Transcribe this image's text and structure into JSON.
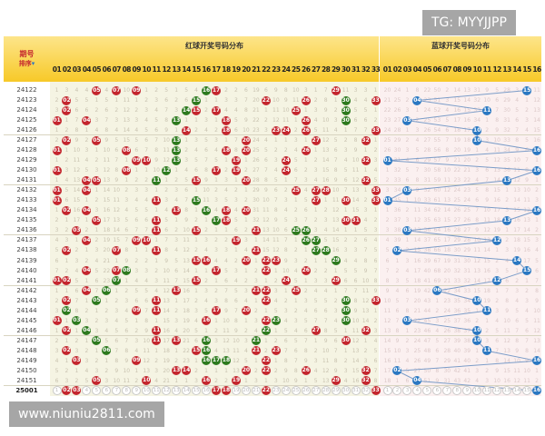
{
  "chart_data": {
    "type": "table",
    "header": {
      "issue_label": "期号",
      "sort_label": "排序",
      "sort_icon": "caret-down-icon",
      "red_title": "红球开奖号码分布",
      "blue_title": "蓝球开奖号码分布"
    },
    "red_columns": [
      "01",
      "02",
      "03",
      "04",
      "05",
      "06",
      "07",
      "08",
      "09",
      "10",
      "11",
      "12",
      "13",
      "14",
      "15",
      "16",
      "17",
      "18",
      "19",
      "20",
      "21",
      "22",
      "23",
      "24",
      "25",
      "26",
      "27",
      "28",
      "29",
      "30",
      "31",
      "32",
      "33"
    ],
    "blue_columns": [
      "01",
      "02",
      "03",
      "04",
      "05",
      "06",
      "07",
      "08",
      "09",
      "10",
      "11",
      "12",
      "13",
      "14",
      "15",
      "16"
    ],
    "first_row_red_omission": [
      1,
      3,
      4,
      4,
      0,
      4,
      0,
      10,
      0,
      1,
      2,
      5,
      1,
      5,
      4,
      0,
      0,
      2,
      2,
      6,
      19,
      6,
      9,
      8,
      10,
      3,
      1,
      7,
      0,
      11,
      3,
      3,
      1
    ],
    "first_row_blue_omission": [
      20,
      24,
      1,
      8,
      22,
      50,
      2,
      14,
      13,
      31,
      9,
      5,
      28,
      3,
      0,
      11
    ],
    "rows": [
      {
        "issue": "24122",
        "red": [
          5,
          7,
          9,
          16,
          17,
          29
        ],
        "green": [
          16
        ],
        "blue": 15
      },
      {
        "issue": "24123",
        "red": [
          2,
          15,
          22,
          26,
          30,
          33
        ],
        "green": [
          15,
          30
        ],
        "blue": 4
      },
      {
        "issue": "24124",
        "red": [
          2,
          14,
          15,
          17,
          25,
          30
        ],
        "green": [
          14,
          30
        ],
        "blue": 11
      },
      {
        "issue": "24125",
        "red": [
          1,
          4,
          13,
          18,
          26,
          30
        ],
        "green": [
          13,
          30
        ],
        "blue": 3
      },
      {
        "issue": "24126",
        "red": [
          14,
          18,
          23,
          24,
          26,
          33
        ],
        "green": [],
        "blue": 10
      },
      {
        "issue": "24127",
        "red": [
          2,
          5,
          13,
          20,
          27,
          32
        ],
        "green": [
          13
        ],
        "blue": 10
      },
      {
        "issue": "24128",
        "red": [
          1,
          8,
          13,
          18,
          20,
          26
        ],
        "green": [
          13
        ],
        "blue": 16
      },
      {
        "issue": "24129",
        "red": [
          9,
          10,
          13,
          19,
          24,
          32
        ],
        "green": [
          13
        ],
        "blue": 1
      },
      {
        "issue": "24130",
        "red": [
          1,
          8,
          12,
          17,
          19,
          24
        ],
        "green": [
          12
        ],
        "blue": 16
      },
      {
        "issue": "24131",
        "red": [
          4,
          5,
          11,
          15,
          20,
          32
        ],
        "green": [
          11
        ],
        "blue": 13
      },
      {
        "issue": "24132",
        "red": [
          1,
          4,
          25,
          27,
          28,
          33
        ],
        "green": [],
        "blue": 3
      },
      {
        "issue": "24133",
        "red": [
          1,
          11,
          15,
          27,
          30,
          33
        ],
        "green": [
          15
        ],
        "blue": 1
      },
      {
        "issue": "24134",
        "red": [
          2,
          4,
          13,
          16,
          18,
          20
        ],
        "green": [
          16
        ],
        "blue": 16
      },
      {
        "issue": "24135",
        "red": [
          5,
          11,
          17,
          18,
          30,
          31
        ],
        "green": [
          17
        ],
        "blue": 13
      },
      {
        "issue": "24136",
        "red": [
          3,
          11,
          15,
          21,
          25,
          26
        ],
        "green": [
          25,
          26
        ],
        "blue": 3
      },
      {
        "issue": "24137",
        "red": [
          4,
          9,
          10,
          19,
          26,
          27
        ],
        "green": [
          26,
          27
        ],
        "blue": 12
      },
      {
        "issue": "24138",
        "red": [
          2,
          7,
          11,
          21,
          27,
          28
        ],
        "green": [
          27,
          28
        ],
        "blue": 2
      },
      {
        "issue": "24139",
        "red": [
          15,
          16,
          20,
          22,
          23,
          29
        ],
        "green": [
          29
        ],
        "blue": 14
      },
      {
        "issue": "24140",
        "red": [
          4,
          7,
          8,
          17,
          22,
          26
        ],
        "green": [
          8
        ],
        "blue": 15
      },
      {
        "issue": "24141",
        "red": [
          1,
          2,
          7,
          15,
          24,
          29
        ],
        "green": [
          7
        ],
        "blue": 12
      },
      {
        "issue": "24142",
        "red": [
          4,
          6,
          13,
          21,
          22,
          25
        ],
        "green": [
          6
        ],
        "blue": 6
      },
      {
        "issue": "24143",
        "red": [
          2,
          5,
          11,
          22,
          30,
          33
        ],
        "green": [
          5,
          30
        ],
        "blue": 10
      },
      {
        "issue": "24144",
        "red": [
          2,
          9,
          11,
          17,
          20,
          30
        ],
        "green": [
          2,
          30
        ],
        "blue": 11
      },
      {
        "issue": "24145",
        "red": [
          1,
          3,
          16,
          22,
          23,
          30
        ],
        "green": [
          3,
          23,
          30
        ],
        "blue": 3
      },
      {
        "issue": "24146",
        "red": [
          2,
          4,
          11,
          22,
          27,
          32
        ],
        "green": [
          4,
          22
        ],
        "blue": 10
      },
      {
        "issue": "24147",
        "red": [
          5,
          11,
          13,
          16,
          21,
          30
        ],
        "green": [
          5,
          16,
          21
        ],
        "blue": 10
      },
      {
        "issue": "24148",
        "red": [
          2,
          6,
          15,
          16,
          21,
          23
        ],
        "green": [
          6,
          16
        ],
        "blue": 11
      },
      {
        "issue": "24149",
        "red": [
          3,
          9,
          16,
          17,
          18,
          22
        ],
        "green": [
          16,
          17,
          18
        ],
        "blue": 16
      },
      {
        "issue": "24150",
        "red": [
          13,
          14,
          20,
          22,
          26,
          32
        ],
        "green": [],
        "blue": 2
      },
      {
        "issue": "24151",
        "red": [
          5,
          10,
          16,
          19,
          29,
          32
        ],
        "green": [],
        "blue": 4
      }
    ],
    "current": {
      "issue": "25001",
      "red": [
        2,
        3,
        17,
        18,
        22,
        33
      ],
      "blue": 16
    },
    "colors": {
      "red_ball": "#c4262e",
      "green_ball": "#2d7a1e",
      "blue_ball": "#2b78c2",
      "red_bg": "#f5f4e3",
      "blue_bg": "#fbf0f0",
      "header": "#f7c928",
      "line": "#7b9cc8"
    }
  },
  "watermarks": {
    "top": "TG: MYYJJPP",
    "bottom": "www.niuniu2811.com"
  }
}
